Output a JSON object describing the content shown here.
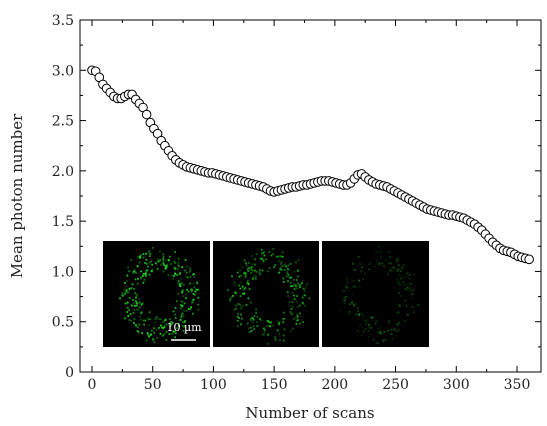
{
  "chart_data": {
    "type": "scatter",
    "xlabel": "Number of scans",
    "ylabel": "Mean photon number",
    "xlim": [
      0,
      365
    ],
    "ylim": [
      0,
      3.5
    ],
    "xticks": [
      "0",
      "50",
      "100",
      "150",
      "200",
      "250",
      "300",
      "350"
    ],
    "yticks": [
      "0",
      "0.5",
      "1.0",
      "1.5",
      "2.0",
      "2.5",
      "3.0",
      "3.5"
    ],
    "grid": false,
    "marker": {
      "shape": "circle",
      "fill": "#ffffff",
      "stroke": "#000000"
    },
    "x": [
      0,
      3,
      6,
      9,
      12,
      15,
      18,
      21,
      24,
      27,
      30,
      33,
      36,
      39,
      42,
      45,
      48,
      51,
      54,
      57,
      60,
      63,
      66,
      69,
      72,
      75,
      78,
      81,
      84,
      87,
      90,
      93,
      96,
      99,
      102,
      105,
      108,
      111,
      114,
      117,
      120,
      123,
      126,
      129,
      132,
      135,
      138,
      141,
      144,
      147,
      150,
      153,
      156,
      159,
      162,
      165,
      168,
      171,
      174,
      177,
      180,
      183,
      186,
      189,
      192,
      195,
      198,
      201,
      204,
      207,
      210,
      213,
      216,
      219,
      222,
      225,
      228,
      231,
      234,
      237,
      240,
      243,
      246,
      249,
      252,
      255,
      258,
      261,
      264,
      267,
      270,
      273,
      276,
      279,
      282,
      285,
      288,
      291,
      294,
      297,
      300,
      303,
      306,
      309,
      312,
      315,
      318,
      321,
      324,
      327,
      330,
      333,
      336,
      339,
      342,
      345,
      348,
      351,
      354,
      357,
      360
    ],
    "y": [
      3.0,
      2.99,
      2.93,
      2.86,
      2.82,
      2.78,
      2.74,
      2.72,
      2.72,
      2.74,
      2.76,
      2.76,
      2.71,
      2.67,
      2.63,
      2.56,
      2.48,
      2.42,
      2.37,
      2.3,
      2.25,
      2.2,
      2.15,
      2.11,
      2.08,
      2.06,
      2.04,
      2.03,
      2.02,
      2.01,
      2.0,
      1.99,
      1.98,
      1.98,
      1.97,
      1.96,
      1.95,
      1.94,
      1.93,
      1.92,
      1.91,
      1.9,
      1.89,
      1.88,
      1.87,
      1.86,
      1.85,
      1.84,
      1.82,
      1.8,
      1.79,
      1.8,
      1.81,
      1.82,
      1.83,
      1.84,
      1.84,
      1.85,
      1.86,
      1.86,
      1.87,
      1.88,
      1.89,
      1.9,
      1.9,
      1.9,
      1.89,
      1.88,
      1.87,
      1.86,
      1.86,
      1.88,
      1.92,
      1.96,
      1.97,
      1.94,
      1.91,
      1.89,
      1.87,
      1.86,
      1.85,
      1.84,
      1.82,
      1.8,
      1.78,
      1.76,
      1.74,
      1.72,
      1.7,
      1.68,
      1.66,
      1.64,
      1.62,
      1.61,
      1.6,
      1.59,
      1.58,
      1.57,
      1.56,
      1.56,
      1.55,
      1.54,
      1.53,
      1.51,
      1.49,
      1.47,
      1.44,
      1.41,
      1.37,
      1.33,
      1.29,
      1.26,
      1.23,
      1.21,
      1.2,
      1.19,
      1.17,
      1.15,
      1.14,
      1.13,
      1.12
    ]
  },
  "insets": [
    {
      "name": "inset-1",
      "scale_bar_label": "10 µm",
      "brightness": 1.0
    },
    {
      "name": "inset-2",
      "scale_bar_label": "",
      "brightness": 0.8
    },
    {
      "name": "inset-3",
      "scale_bar_label": "",
      "brightness": 0.4
    }
  ],
  "colors": {
    "axis": "#000000",
    "inset_background": "#000000",
    "fluorescence": "#22dd22"
  }
}
